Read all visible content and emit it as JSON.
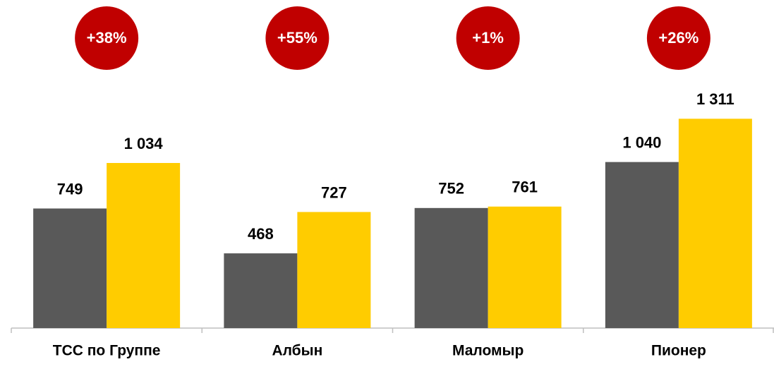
{
  "chart_data": {
    "type": "bar",
    "categories": [
      "ТСС по Группе",
      "Албын",
      "Маломыр",
      "Пионер"
    ],
    "series": [
      {
        "color": "#595959",
        "values": [
          749,
          468,
          752,
          1040
        ],
        "value_labels": [
          "749",
          "468",
          "752",
          "1 040"
        ]
      },
      {
        "color": "#ffcc00",
        "values": [
          1034,
          727,
          761,
          1311
        ],
        "value_labels": [
          "1 034",
          "727",
          "761",
          "1 311"
        ]
      }
    ],
    "annotations": [
      "+38%",
      "+55%",
      "+1%",
      "+26%"
    ],
    "annotation_color": "#c00000",
    "ylim": [
      0,
      2000
    ]
  }
}
